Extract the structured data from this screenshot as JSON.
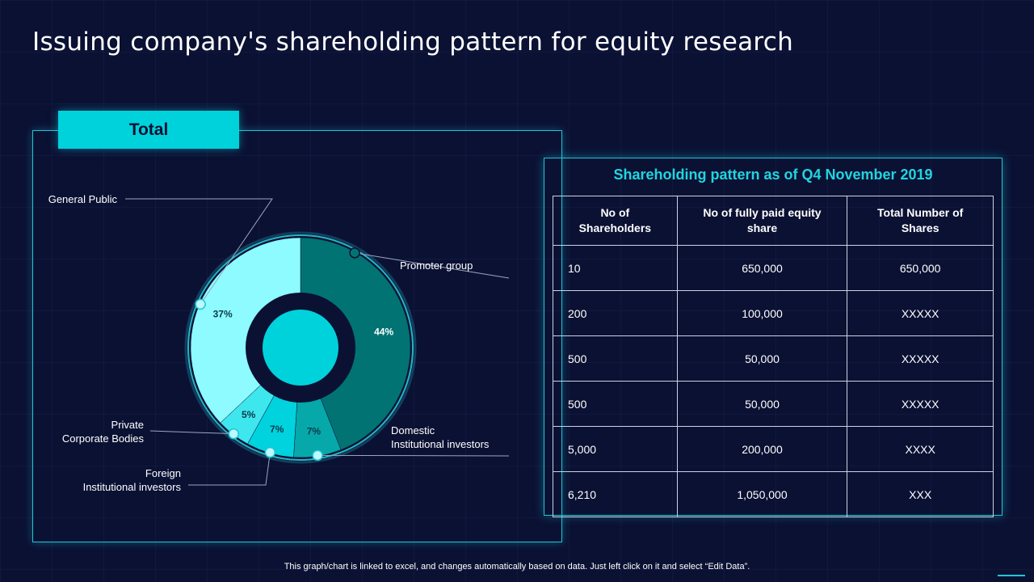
{
  "title": "Issuing company's shareholding pattern for equity research",
  "total_tab": "Total",
  "colors": {
    "accent": "#00d2dc",
    "panel_border": "#1fc6d6",
    "background": "#0b1133"
  },
  "chart_data": {
    "type": "pie",
    "variant": "donut",
    "title": "",
    "slices": [
      {
        "label": "Promoter group",
        "value": 44,
        "display": "44%",
        "color": "#027373"
      },
      {
        "label": "Domestic\nInstitutional investors",
        "value": 7,
        "display": "7%",
        "color": "#06a8aa"
      },
      {
        "label": "Foreign\nInstitutional investors",
        "value": 7,
        "display": "7%",
        "color": "#00d3dd"
      },
      {
        "label": "Private\nCorporate Bodies",
        "value": 5,
        "display": "5%",
        "color": "#3ee6ee"
      },
      {
        "label": "General Public",
        "value": 37,
        "display": "37%",
        "color": "#8dfbff"
      }
    ]
  },
  "table": {
    "title": "Shareholding  pattern as of Q4 November 2019",
    "headers": [
      "No of Shareholders",
      "No of fully paid equity share",
      "Total Number of Shares"
    ],
    "rows": [
      [
        "10",
        "650,000",
        "650,000"
      ],
      [
        "200",
        "100,000",
        "XXXXX"
      ],
      [
        "500",
        "50,000",
        "XXXXX"
      ],
      [
        "500",
        "50,000",
        "XXXXX"
      ],
      [
        "5,000",
        "200,000",
        "XXXX"
      ],
      [
        "6,210",
        "1,050,000",
        "XXX"
      ]
    ]
  },
  "footer": "This graph/chart is linked to excel,  and changes automatically based on data. Just left click on it and select “Edit Data”."
}
